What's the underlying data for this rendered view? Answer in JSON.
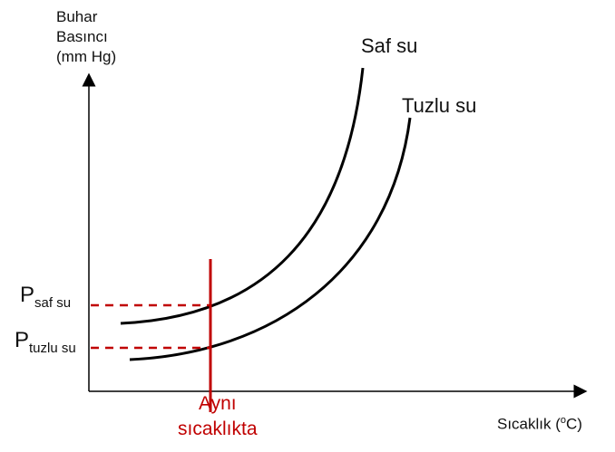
{
  "y_axis": {
    "lines": [
      "Buhar",
      "Basıncı",
      "(mm Hg)"
    ]
  },
  "x_axis": {
    "label": "Sıcaklık (",
    "unit_sup": "o",
    "unit_tail": "C)"
  },
  "curves": {
    "pure": "Saf su",
    "salt": "Tuzlu su"
  },
  "pressures": {
    "pure_main": "P",
    "pure_sub": "saf su",
    "salt_main": "P",
    "salt_sub": "tuzlu su"
  },
  "marker": {
    "line1": "Aynı",
    "line2": "sıcaklıkta"
  },
  "colors": {
    "curve": "#000000",
    "axis": "#000000",
    "highlight": "#c00000"
  }
}
